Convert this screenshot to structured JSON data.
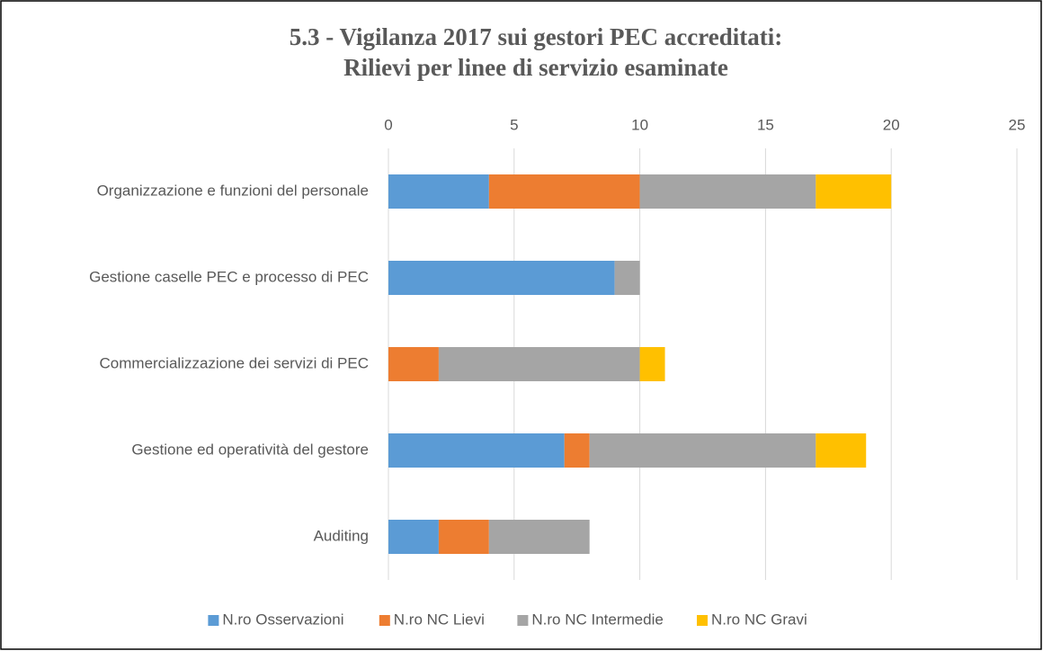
{
  "chart_data": {
    "type": "stacked_bar_horizontal",
    "title": [
      "5.3 - Vigilanza 2017 sui gestori PEC  accreditati:",
      "Rilievi per linee di servizio esaminate"
    ],
    "categories": [
      "Organizzazione e funzioni del personale",
      "Gestione caselle PEC e processo di PEC",
      "Commercializzazione dei servizi di PEC",
      "Gestione ed operatività del gestore",
      "Auditing"
    ],
    "series": [
      {
        "name": "N.ro Osservazioni",
        "color": "#5b9bd5",
        "values": [
          4,
          9,
          0,
          7,
          2
        ]
      },
      {
        "name": "N.ro NC Lievi",
        "color": "#ed7d31",
        "values": [
          6,
          0,
          2,
          1,
          2
        ]
      },
      {
        "name": "N.ro NC Intermedie",
        "color": "#a5a5a5",
        "values": [
          7,
          1,
          8,
          9,
          4
        ]
      },
      {
        "name": "N.ro NC Gravi",
        "color": "#ffc000",
        "values": [
          3,
          0,
          1,
          2,
          0
        ]
      }
    ],
    "xlim": [
      0,
      25
    ],
    "xticks": [
      0,
      5,
      10,
      15,
      20,
      25
    ],
    "grid": true,
    "legend": "bottom"
  }
}
